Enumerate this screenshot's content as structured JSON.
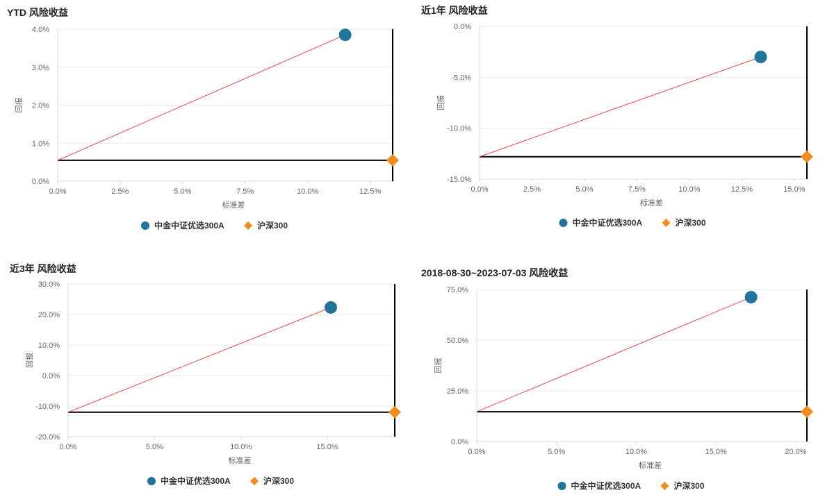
{
  "chart_data": [
    {
      "type": "scatter",
      "title": "YTD 风险收益",
      "xlabel": "标准差",
      "ylabel": "回报",
      "xticks": [
        0,
        2.5,
        5,
        7.5,
        10,
        12.5
      ],
      "xtick_labels": [
        "0.0%",
        "2.5%",
        "5.0%",
        "7.5%",
        "10.0%",
        "12.5%"
      ],
      "yticks": [
        0,
        1,
        2,
        3,
        4
      ],
      "ytick_labels": [
        "0.0%",
        "1.0%",
        "2.0%",
        "3.0%",
        "4.0%"
      ],
      "xlim": [
        0,
        13.4
      ],
      "ylim": [
        0,
        4
      ],
      "series": [
        {
          "name": "中金中证优选300A",
          "marker": "circle",
          "x": 11.5,
          "y": 3.85
        },
        {
          "name": "沪深300",
          "marker": "diamond",
          "x": 13.4,
          "y": 0.55
        }
      ]
    },
    {
      "type": "scatter",
      "title": "近1年 风险收益",
      "xlabel": "标准差",
      "ylabel": "回报",
      "xticks": [
        0,
        2.5,
        5,
        7.5,
        10,
        12.5,
        15
      ],
      "xtick_labels": [
        "0.0%",
        "2.5%",
        "5.0%",
        "7.5%",
        "10.0%",
        "12.5%",
        "15.0%"
      ],
      "yticks": [
        -15,
        -10,
        -5,
        0
      ],
      "ytick_labels": [
        "-15.0%",
        "-10.0%",
        "-5.0%",
        "0.0%"
      ],
      "xlim": [
        0,
        15.6
      ],
      "ylim": [
        -15,
        0
      ],
      "series": [
        {
          "name": "中金中证优选300A",
          "marker": "circle",
          "x": 13.4,
          "y": -3.0
        },
        {
          "name": "沪深300",
          "marker": "diamond",
          "x": 15.6,
          "y": -12.8
        }
      ]
    },
    {
      "type": "scatter",
      "title": "近3年 风险收益",
      "xlabel": "标准差",
      "ylabel": "回报",
      "xticks": [
        0,
        5,
        10,
        15
      ],
      "xtick_labels": [
        "0.0%",
        "5.0%",
        "10.0%",
        "15.0%"
      ],
      "yticks": [
        -20,
        -10,
        0,
        10,
        20,
        30
      ],
      "ytick_labels": [
        "-20.0%",
        "-10.0%",
        "0.0%",
        "10.0%",
        "20.0%",
        "30.0%"
      ],
      "xlim": [
        0,
        18.9
      ],
      "ylim": [
        -20,
        30
      ],
      "series": [
        {
          "name": "中金中证优选300A",
          "marker": "circle",
          "x": 15.2,
          "y": 22.3
        },
        {
          "name": "沪深300",
          "marker": "diamond",
          "x": 18.9,
          "y": -12.0
        }
      ]
    },
    {
      "type": "scatter",
      "title": "2018-08-30~2023-07-03 风险收益",
      "xlabel": "标准差",
      "ylabel": "回报",
      "xticks": [
        0,
        5,
        10,
        15,
        20
      ],
      "xtick_labels": [
        "0.0%",
        "5.0%",
        "10.0%",
        "15.0%",
        "20.0%"
      ],
      "yticks": [
        0,
        25,
        50,
        75
      ],
      "ytick_labels": [
        "0.0%",
        "25.0%",
        "50.0%",
        "75.0%"
      ],
      "xlim": [
        0,
        20.7
      ],
      "ylim": [
        0,
        75
      ],
      "series": [
        {
          "name": "中金中证优选300A",
          "marker": "circle",
          "x": 17.2,
          "y": 71.2
        },
        {
          "name": "沪深300",
          "marker": "diamond",
          "x": 20.7,
          "y": 14.7
        }
      ]
    }
  ],
  "colors": {
    "fund": "#21759b",
    "benchmark": "#f28a1c",
    "line": "#e8484f",
    "ref": "#000000",
    "grid": "#e6e9f0"
  }
}
